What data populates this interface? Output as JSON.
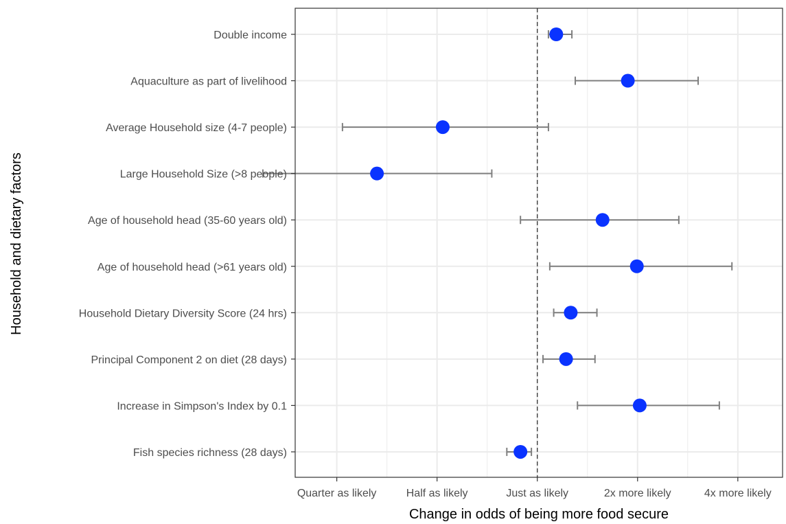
{
  "chart_data": {
    "type": "scatter",
    "subtype": "forest-plot",
    "xlabel": "Change in odds of being more food secure",
    "ylabel": "Household and dietary factors",
    "x_scale": "log2",
    "xlim": [
      0.1875,
      5.45
    ],
    "x_ticks": [
      {
        "value": 0.25,
        "label": "Quarter as likely"
      },
      {
        "value": 0.5,
        "label": "Half as likely"
      },
      {
        "value": 1,
        "label": "Just as likely"
      },
      {
        "value": 2,
        "label": "2x more likely"
      },
      {
        "value": 4,
        "label": "4x more likely"
      }
    ],
    "reference_line": {
      "x": 1,
      "style": "dashed"
    },
    "grid": true,
    "colors": {
      "point": "#0a33ff",
      "errorbar": "#7f7f7f",
      "grid": "#ebebeb",
      "border": "#333333"
    },
    "points": [
      {
        "label": "Double income",
        "estimate": 1.14,
        "lower": 1.08,
        "upper": 1.27
      },
      {
        "label": "Aquaculture as part of livelihood",
        "estimate": 1.87,
        "lower": 1.3,
        "upper": 3.04
      },
      {
        "label": "Average Household size (4-7 people)",
        "estimate": 0.52,
        "lower": 0.26,
        "upper": 1.08
      },
      {
        "label": "Large Household Size (>8 people)",
        "estimate": 0.33,
        "lower": 0.15,
        "upper": 0.73
      },
      {
        "label": "Age of household head (35-60 years old)",
        "estimate": 1.57,
        "lower": 0.89,
        "upper": 2.66
      },
      {
        "label": "Age of household head (>61 years old)",
        "estimate": 1.99,
        "lower": 1.09,
        "upper": 3.84
      },
      {
        "label": "Household Dietary Diversity Score (24 hrs)",
        "estimate": 1.26,
        "lower": 1.12,
        "upper": 1.51
      },
      {
        "label": "Principal Component 2 on diet (28 days)",
        "estimate": 1.22,
        "lower": 1.04,
        "upper": 1.49
      },
      {
        "label": "Increase in Simpson's Index by 0.1",
        "estimate": 2.03,
        "lower": 1.32,
        "upper": 3.52
      },
      {
        "label": "Fish species richness (28 days)",
        "estimate": 0.89,
        "lower": 0.81,
        "upper": 0.96
      }
    ]
  }
}
